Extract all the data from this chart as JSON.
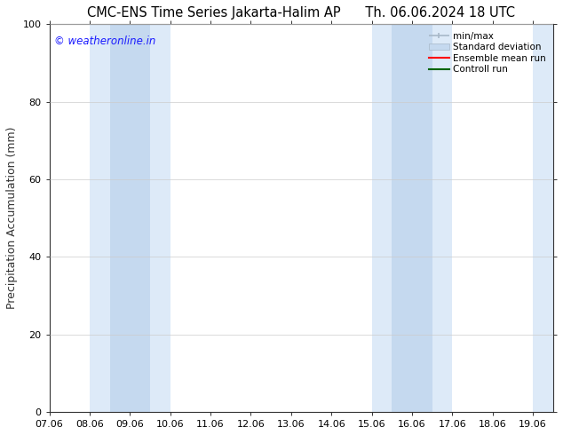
{
  "title": "CMC-ENS Time Series Jakarta-Halim AP      Th. 06.06.2024 18 UTC",
  "ylabel": "Precipitation Accumulation (mm)",
  "watermark": "© weatheronline.in",
  "watermark_color": "#1a1aff",
  "ylim": [
    0,
    100
  ],
  "yticks": [
    0,
    20,
    40,
    60,
    80,
    100
  ],
  "xtick_labels": [
    "07.06",
    "08.06",
    "09.06",
    "10.06",
    "11.06",
    "12.06",
    "13.06",
    "14.06",
    "15.06",
    "16.06",
    "17.06",
    "18.06",
    "19.06"
  ],
  "xtick_positions": [
    7.06,
    8.06,
    9.06,
    10.06,
    11.06,
    12.06,
    13.06,
    14.06,
    15.06,
    16.06,
    17.06,
    18.06,
    19.06
  ],
  "x_min": 7.06,
  "x_max": 19.56,
  "shaded_bands_outer": [
    {
      "x_start": 8.06,
      "x_end": 10.06
    },
    {
      "x_start": 15.06,
      "x_end": 17.06
    },
    {
      "x_start": 19.06,
      "x_end": 19.56
    }
  ],
  "shaded_bands_inner": [
    {
      "x_start": 8.56,
      "x_end": 9.56
    },
    {
      "x_start": 15.56,
      "x_end": 16.56
    }
  ],
  "band_outer_color": "#ddeaf8",
  "band_inner_color": "#c5d9ef",
  "minmax_color": "#a8b8c8",
  "stddev_color": "#c5d9ef",
  "ensemble_mean_color": "#ff0000",
  "control_run_color": "#006400",
  "legend_labels": [
    "min/max",
    "Standard deviation",
    "Ensemble mean run",
    "Controll run"
  ],
  "background_color": "#ffffff",
  "title_fontsize": 10.5,
  "tick_fontsize": 8,
  "ylabel_fontsize": 9,
  "legend_fontsize": 7.5
}
